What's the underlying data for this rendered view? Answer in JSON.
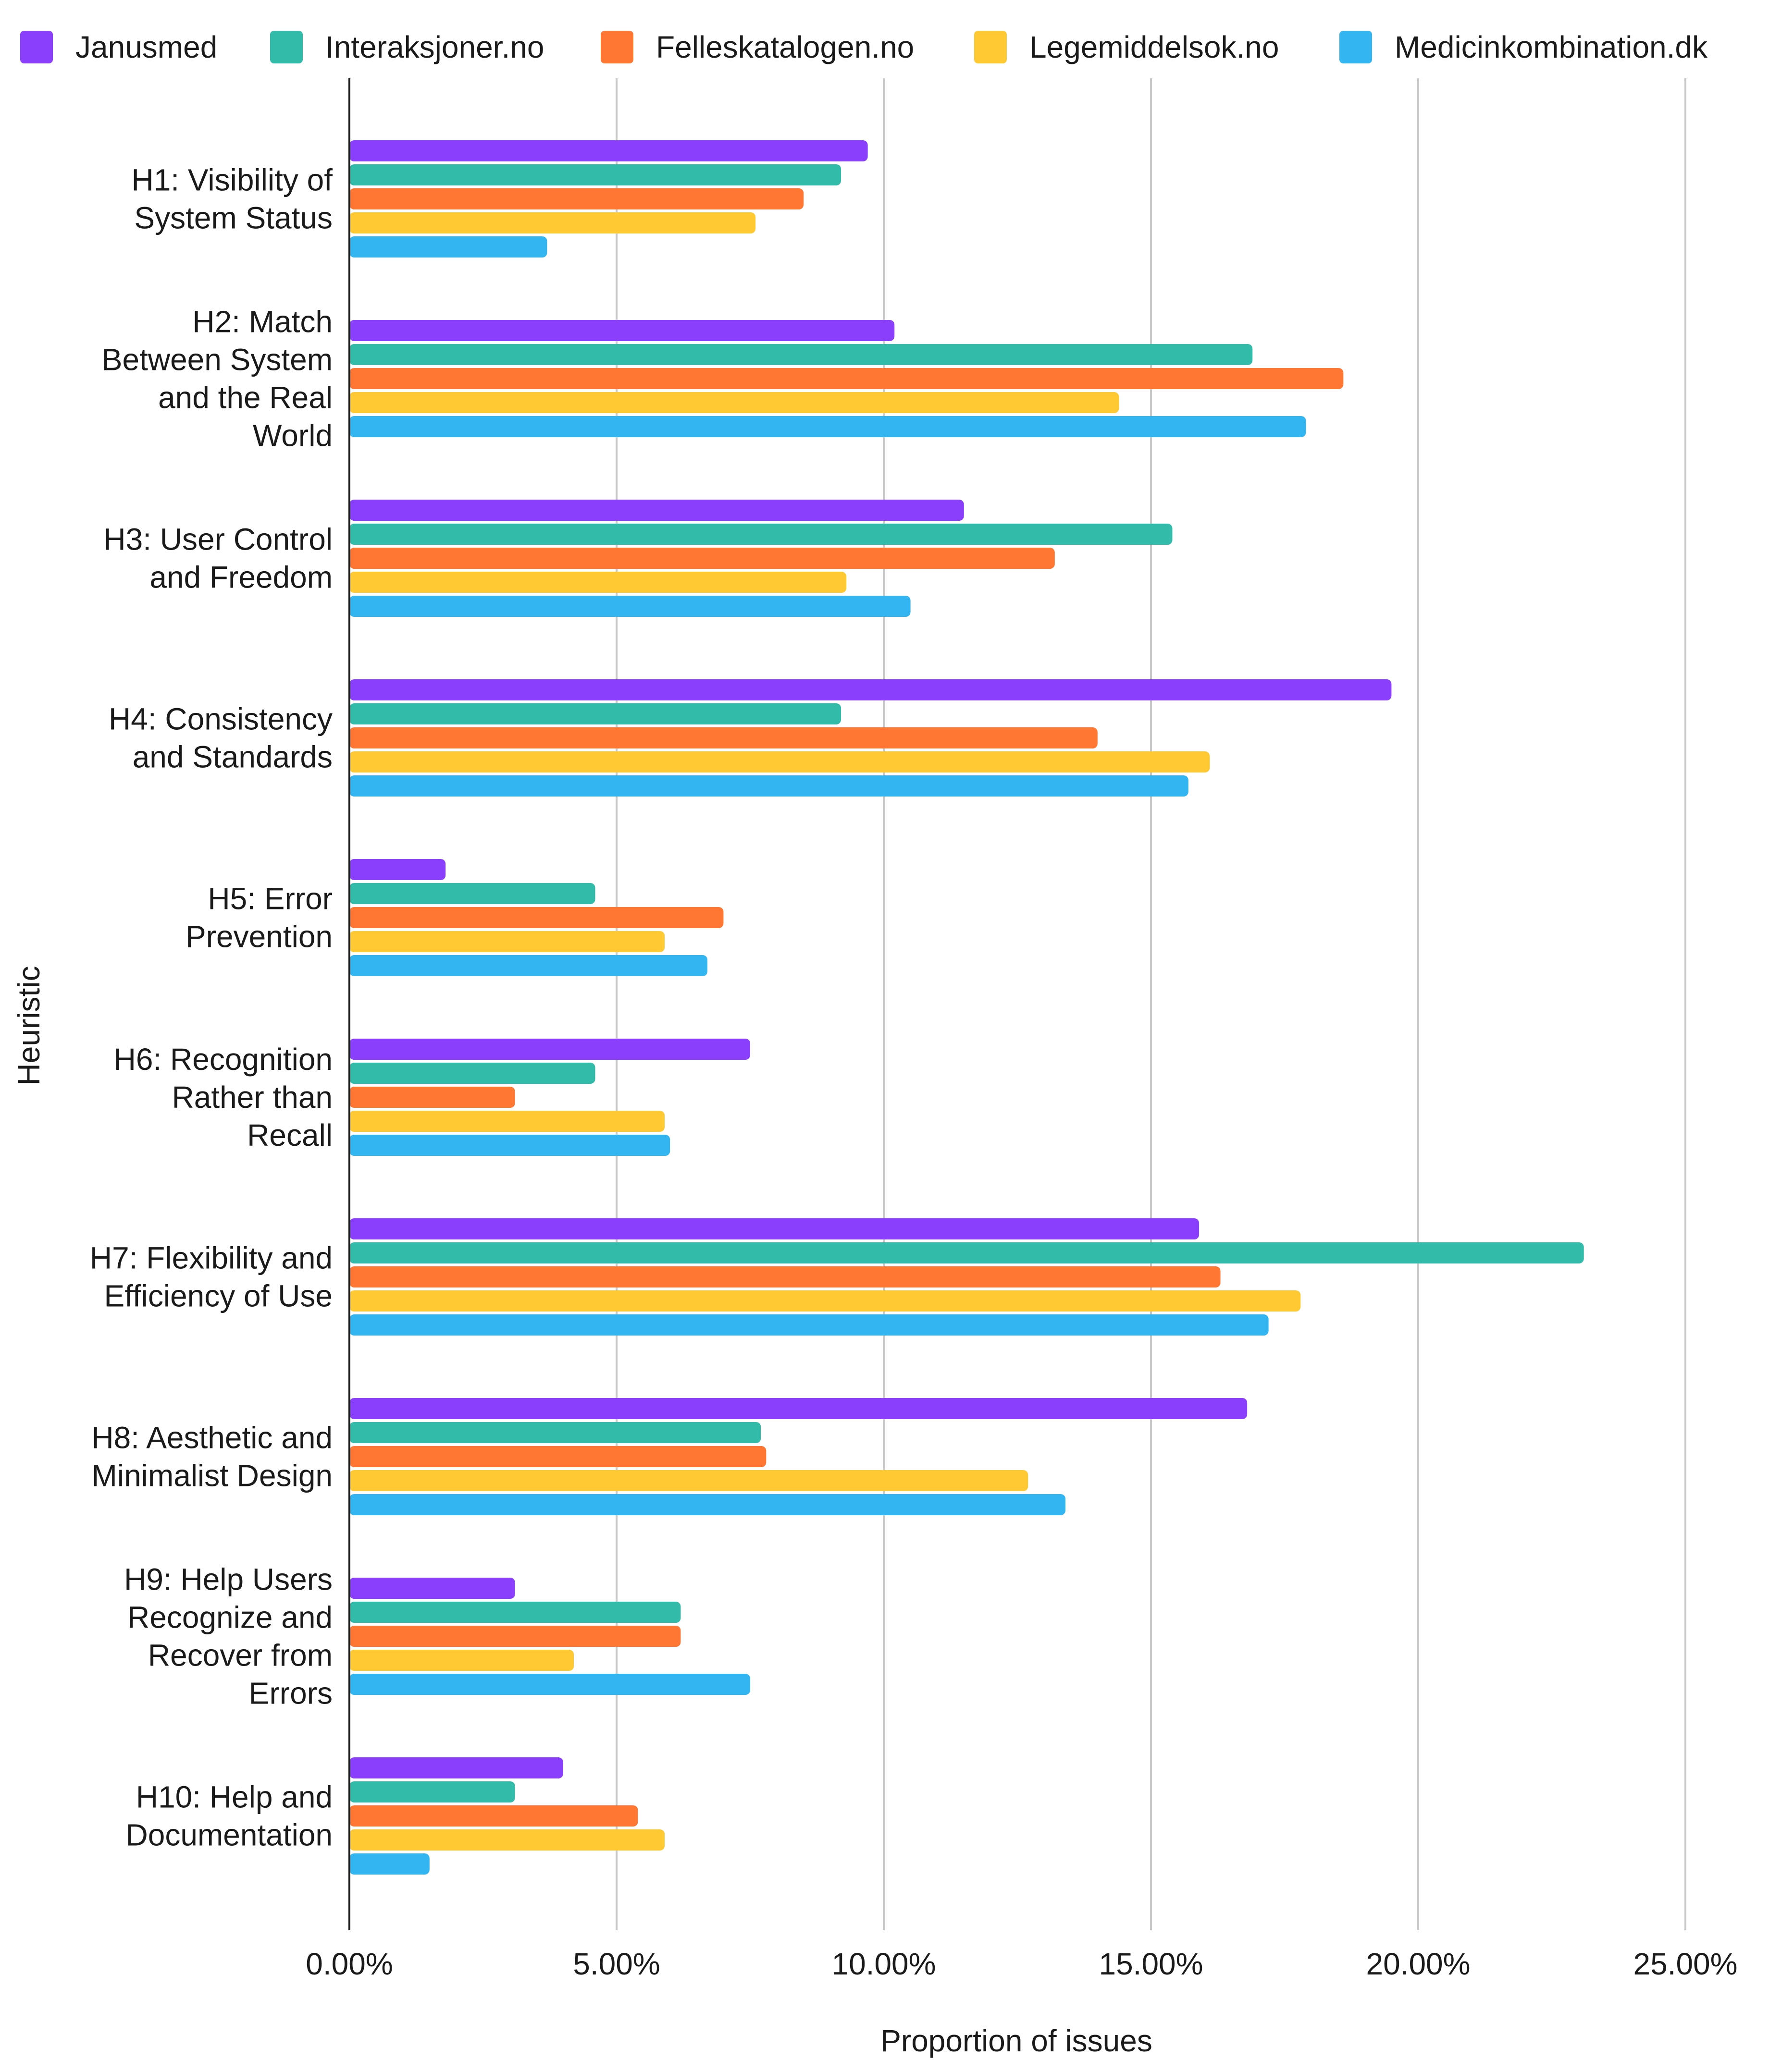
{
  "chart_data": {
    "type": "bar",
    "orientation": "horizontal",
    "title": "",
    "xlabel": "Proportion of issues",
    "ylabel": "Heuristic",
    "xlim": [
      0,
      25
    ],
    "x_ticks": [
      "0.00%",
      "5.00%",
      "10.00%",
      "15.00%",
      "20.00%",
      "25.00%"
    ],
    "x_tick_values": [
      0,
      5,
      10,
      15,
      20,
      25
    ],
    "grid": "vertical",
    "legend_position": "top",
    "categories": [
      "H1: Visibility of System Status",
      "H2: Match Between System and the Real World",
      "H3: User Control and Freedom",
      "H4: Consistency and Standards",
      "H5: Error Prevention",
      "H6: Recognition Rather than Recall",
      "H7: Flexibility and Efficiency of Use",
      "H8: Aesthetic and Minimalist Design",
      "H9: Help Users Recognize and Recover from Errors",
      "H10: Help and Documentation"
    ],
    "category_label_lines": [
      [
        "H1: Visibility of",
        "System Status"
      ],
      [
        "H2: Match",
        "Between System",
        "and the Real",
        "World"
      ],
      [
        "H3: User Control",
        "and Freedom"
      ],
      [
        "H4: Consistency",
        "and Standards"
      ],
      [
        "H5: Error",
        "Prevention"
      ],
      [
        "H6: Recognition",
        "Rather than",
        "Recall"
      ],
      [
        "H7: Flexibility and",
        "Efficiency of Use"
      ],
      [
        "H8: Aesthetic and",
        "Minimalist Design"
      ],
      [
        "H9: Help Users",
        "Recognize and",
        "Recover from",
        "Errors"
      ],
      [
        "H10: Help and",
        "Documentation"
      ]
    ],
    "series": [
      {
        "name": "Janusmed",
        "color": "#8a3ffc",
        "values": [
          9.7,
          10.2,
          11.5,
          19.5,
          1.8,
          7.5,
          15.9,
          16.8,
          3.1,
          4.0
        ]
      },
      {
        "name": "Interaksjoner.no",
        "color": "#33bba9",
        "values": [
          9.2,
          16.9,
          15.4,
          9.2,
          4.6,
          4.6,
          23.1,
          7.7,
          6.2,
          3.1
        ]
      },
      {
        "name": "Felleskatalogen.no",
        "color": "#ff7733",
        "values": [
          8.5,
          18.6,
          13.2,
          14.0,
          7.0,
          3.1,
          16.3,
          7.8,
          6.2,
          5.4
        ]
      },
      {
        "name": "Legemiddelsok.no",
        "color": "#ffc933",
        "values": [
          7.6,
          14.4,
          9.3,
          16.1,
          5.9,
          5.9,
          17.8,
          12.7,
          4.2,
          5.9
        ]
      },
      {
        "name": "Medicinkombination.dk",
        "color": "#33b5f2",
        "values": [
          3.7,
          17.9,
          10.5,
          15.7,
          6.7,
          6.0,
          17.2,
          13.4,
          7.5,
          1.5
        ]
      }
    ]
  }
}
